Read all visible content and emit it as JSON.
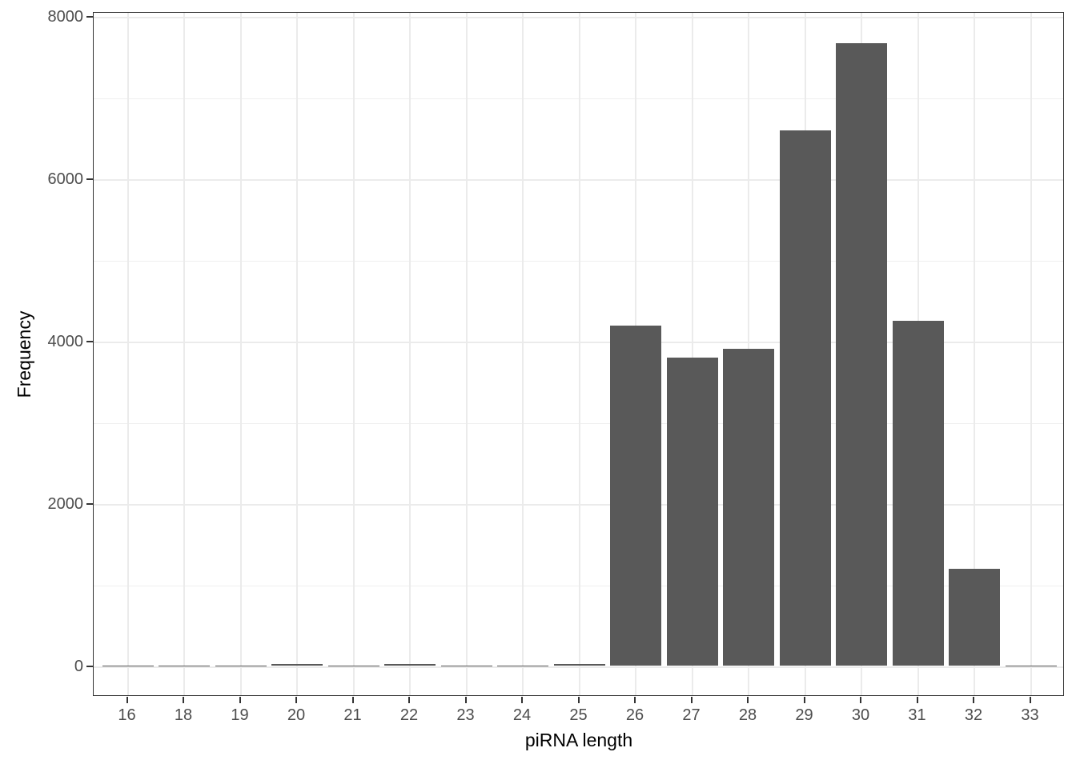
{
  "chart_data": {
    "type": "bar",
    "title": "",
    "xlabel": "piRNA length",
    "ylabel": "Frequency",
    "categories": [
      "16",
      "18",
      "19",
      "20",
      "21",
      "22",
      "23",
      "24",
      "25",
      "26",
      "27",
      "28",
      "29",
      "30",
      "31",
      "32",
      "33"
    ],
    "values": [
      2,
      3,
      4,
      16,
      4,
      16,
      3,
      5,
      20,
      4190,
      3790,
      3900,
      6590,
      7670,
      4250,
      1190,
      2
    ],
    "yticks": [
      0,
      2000,
      4000,
      6000,
      8000
    ],
    "ylim": [
      0,
      8000
    ],
    "legend": "none",
    "grid": "horizontal major every 2000 with minor every 1000; vertical gridline at each category",
    "bar_color": "#595959",
    "gridline_color": "#ebebeb",
    "panel_border_color": "#333333",
    "tick_label_color": "#4d4d4d",
    "axis_title_color": "#000000",
    "plot_style": "ggplot2 theme_bw histogram, white background, no legend, no title"
  }
}
